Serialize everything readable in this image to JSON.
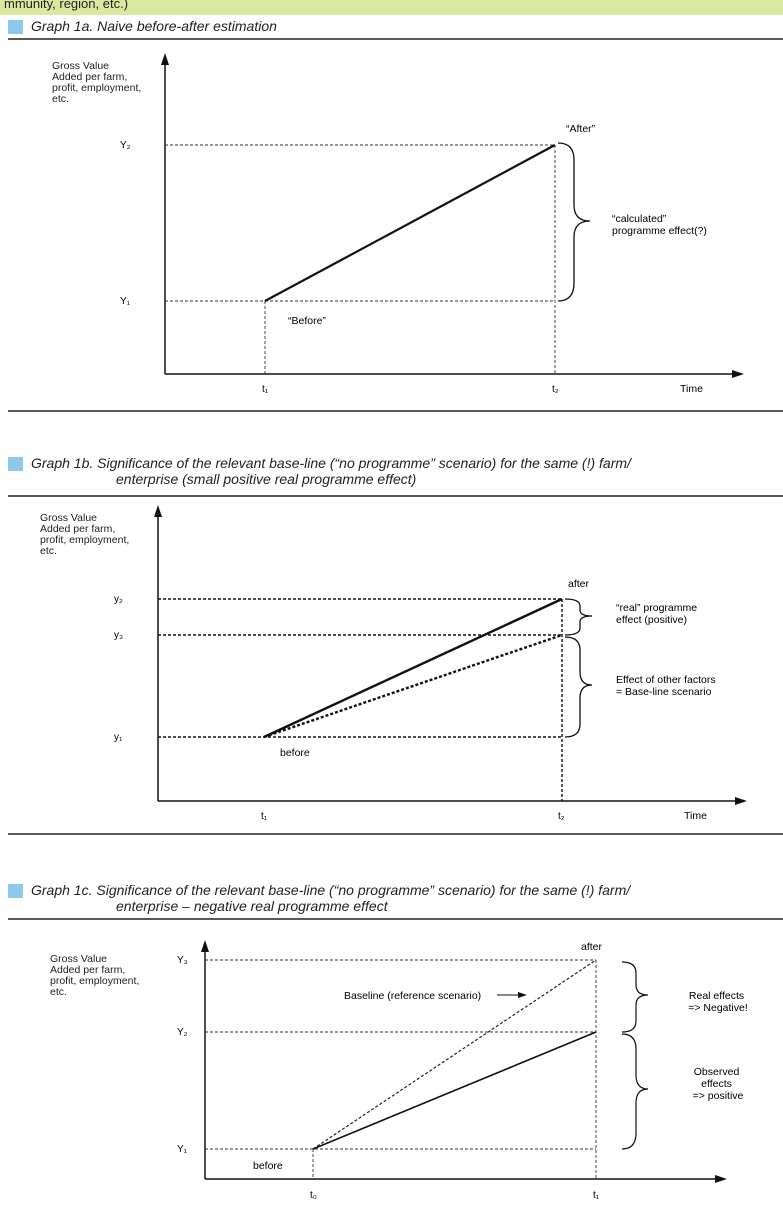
{
  "header_fragment": "mmunity, region, etc.)",
  "graph1a": {
    "title": "Graph 1a. Naive before-after estimation",
    "ylabel": [
      "Gross Value",
      "Added per farm,",
      "profit, employment,",
      "etc."
    ],
    "y_ticks": [
      "Y₂",
      "Y₁"
    ],
    "x_ticks": [
      "t₁",
      "t₂"
    ],
    "xlabel": "Time",
    "point_labels": {
      "before": "“Before”",
      "after": "“After”"
    },
    "brace_label": [
      "“calculated”",
      "programme effect(?)"
    ]
  },
  "graph1b": {
    "title_line1": "Graph 1b. Significance of the relevant base-line (“no programme” scenario) for the same (!) farm/",
    "title_line2": "enterprise (small positive real programme effect)",
    "ylabel": [
      "Gross Value",
      "Added per farm,",
      "profit, employment,",
      "etc."
    ],
    "y_ticks": [
      "y₂",
      "y₃",
      "y₁"
    ],
    "x_ticks": [
      "t₁",
      "t₂"
    ],
    "xlabel": "Time",
    "point_labels": {
      "before": "before",
      "after": "after"
    },
    "brace_upper": [
      "“real” programme",
      "effect (positive)"
    ],
    "brace_lower": [
      "Effect of other factors",
      "= Base-line scenario"
    ]
  },
  "graph1c": {
    "title_line1": "Graph 1c. Significance of the relevant base-line (“no programme” scenario) for the same (!) farm/",
    "title_line2": "enterprise – negative real programme effect",
    "ylabel": [
      "Gross Value",
      "Added per farm,",
      "profit, employment,",
      "etc."
    ],
    "y_ticks": [
      "Y₃",
      "Y₂",
      "Y₁"
    ],
    "x_ticks": [
      "t₀",
      "t₁"
    ],
    "point_labels": {
      "before": "before",
      "after": "after"
    },
    "baseline_label": "Baseline (reference scenario)",
    "brace_upper": [
      "Real effects",
      "=> Negative!"
    ],
    "brace_lower": [
      "Observed",
      "effects",
      "=> positive"
    ]
  }
}
